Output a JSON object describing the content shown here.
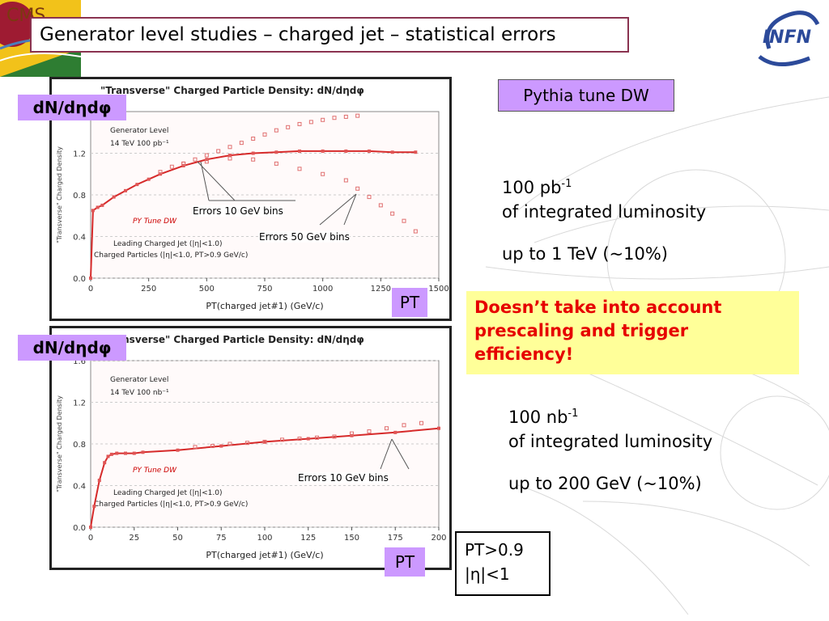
{
  "slide": {
    "title": "Generator level studies – charged jet – statistical errors",
    "cms_logo_text": "CMS",
    "infn_logo_text": "INFN",
    "tune_label": "Pythia tune DW",
    "plot_top": {
      "ylabel_tag": "dN/dηdφ",
      "x_tag": "PT",
      "annotations": [
        "Errors 10 GeV bins",
        "Errors 50 GeV bins"
      ]
    },
    "plot_bottom": {
      "ylabel_tag": "dN/dηdφ",
      "x_tag": "PT",
      "annotations": [
        "Errors 10 GeV bins"
      ]
    },
    "note_top": {
      "value": "100 pb",
      "exponent": "-1",
      "line2": "of integrated luminosity",
      "line3": "up to 1 TeV (~10%)"
    },
    "warning": "Doesn’t take into account prescaling and trigger efficiency!",
    "note_bottom": {
      "value": "100 nb",
      "exponent": "-1",
      "line2": "of integrated luminosity",
      "line3": "up to 200 GeV (~10%)"
    },
    "cuts": {
      "line1": "PT>0.9",
      "line2": "|η|<1"
    }
  },
  "chart_data": [
    {
      "type": "line",
      "title": "\"Transverse\" Charged Particle Density: dN/dηdφ",
      "xlabel": "PT(charged jet#1) (GeV/c)",
      "ylabel": "\"Transverse\" Charged Density",
      "xlim": [
        0,
        1500
      ],
      "ylim": [
        0,
        1.6
      ],
      "x_ticks": [
        "0",
        "250",
        "500",
        "750",
        "1000",
        "1250",
        "1500"
      ],
      "y_ticks": [
        "0.0",
        "0.4",
        "0.8",
        "1.2"
      ],
      "annotations": [
        "Generator Level",
        "14 TeV 100 pb⁻¹",
        "PY Tune DW",
        "Leading Charged Jet (|η|<1.0)",
        "Charged Particles (|η|<1.0, PT>0.9 GeV/c)"
      ],
      "series": [
        {
          "name": "PY Tune DW",
          "x": [
            0,
            10,
            30,
            50,
            100,
            150,
            200,
            250,
            300,
            400,
            500,
            600,
            700,
            800,
            900,
            1000,
            1100,
            1200,
            1300,
            1400
          ],
          "y": [
            0.0,
            0.65,
            0.68,
            0.7,
            0.78,
            0.84,
            0.9,
            0.95,
            1.0,
            1.08,
            1.14,
            1.18,
            1.2,
            1.21,
            1.22,
            1.22,
            1.22,
            1.22,
            1.21,
            1.21
          ]
        },
        {
          "name": "Errors 10 GeV bins",
          "x": [
            300,
            350,
            400,
            450,
            500,
            550,
            600,
            650,
            700,
            750,
            800,
            850,
            900,
            950,
            1000,
            1050,
            1100,
            1150
          ],
          "y": [
            1.02,
            1.07,
            1.1,
            1.14,
            1.18,
            1.22,
            1.26,
            1.3,
            1.34,
            1.38,
            1.42,
            1.45,
            1.48,
            1.5,
            1.52,
            1.54,
            1.55,
            1.56
          ]
        },
        {
          "name": "Errors 50 GeV bins",
          "x": [
            400,
            500,
            600,
            700,
            800,
            900,
            1000,
            1100,
            1150,
            1200,
            1250,
            1300,
            1350,
            1400
          ],
          "y": [
            1.1,
            1.12,
            1.15,
            1.14,
            1.1,
            1.05,
            1.0,
            0.94,
            0.86,
            0.78,
            0.7,
            0.62,
            0.55,
            0.45
          ]
        }
      ]
    },
    {
      "type": "line",
      "title": "\"Transverse\" Charged Particle Density: dN/dηdφ",
      "xlabel": "PT(charged jet#1) (GeV/c)",
      "ylabel": "\"Transverse\" Charged Density",
      "xlim": [
        0,
        200
      ],
      "ylim": [
        0,
        1.6
      ],
      "x_ticks": [
        "0",
        "25",
        "50",
        "75",
        "100",
        "125",
        "150",
        "175",
        "200"
      ],
      "y_ticks": [
        "0.0",
        "0.4",
        "0.8",
        "1.2",
        "1.6"
      ],
      "annotations": [
        "Generator Level",
        "14 TeV 100 nb⁻¹",
        "PY Tune DW",
        "Leading Charged Jet (|η|<1.0)",
        "Charged Particles (|η|<1.0, PT>0.9 GeV/c)"
      ],
      "series": [
        {
          "name": "PY Tune DW",
          "x": [
            0,
            2,
            5,
            8,
            10,
            12,
            15,
            20,
            25,
            30,
            50,
            75,
            100,
            125,
            150,
            175,
            200
          ],
          "y": [
            0.0,
            0.2,
            0.45,
            0.62,
            0.68,
            0.7,
            0.71,
            0.71,
            0.71,
            0.72,
            0.74,
            0.78,
            0.82,
            0.85,
            0.88,
            0.91,
            0.95
          ]
        },
        {
          "name": "Errors 10 GeV bins",
          "x": [
            60,
            70,
            80,
            90,
            100,
            110,
            120,
            130,
            140,
            150,
            160,
            170,
            180,
            190
          ],
          "y": [
            0.77,
            0.78,
            0.8,
            0.81,
            0.82,
            0.84,
            0.85,
            0.86,
            0.87,
            0.9,
            0.92,
            0.95,
            0.98,
            1.0
          ]
        }
      ]
    }
  ]
}
